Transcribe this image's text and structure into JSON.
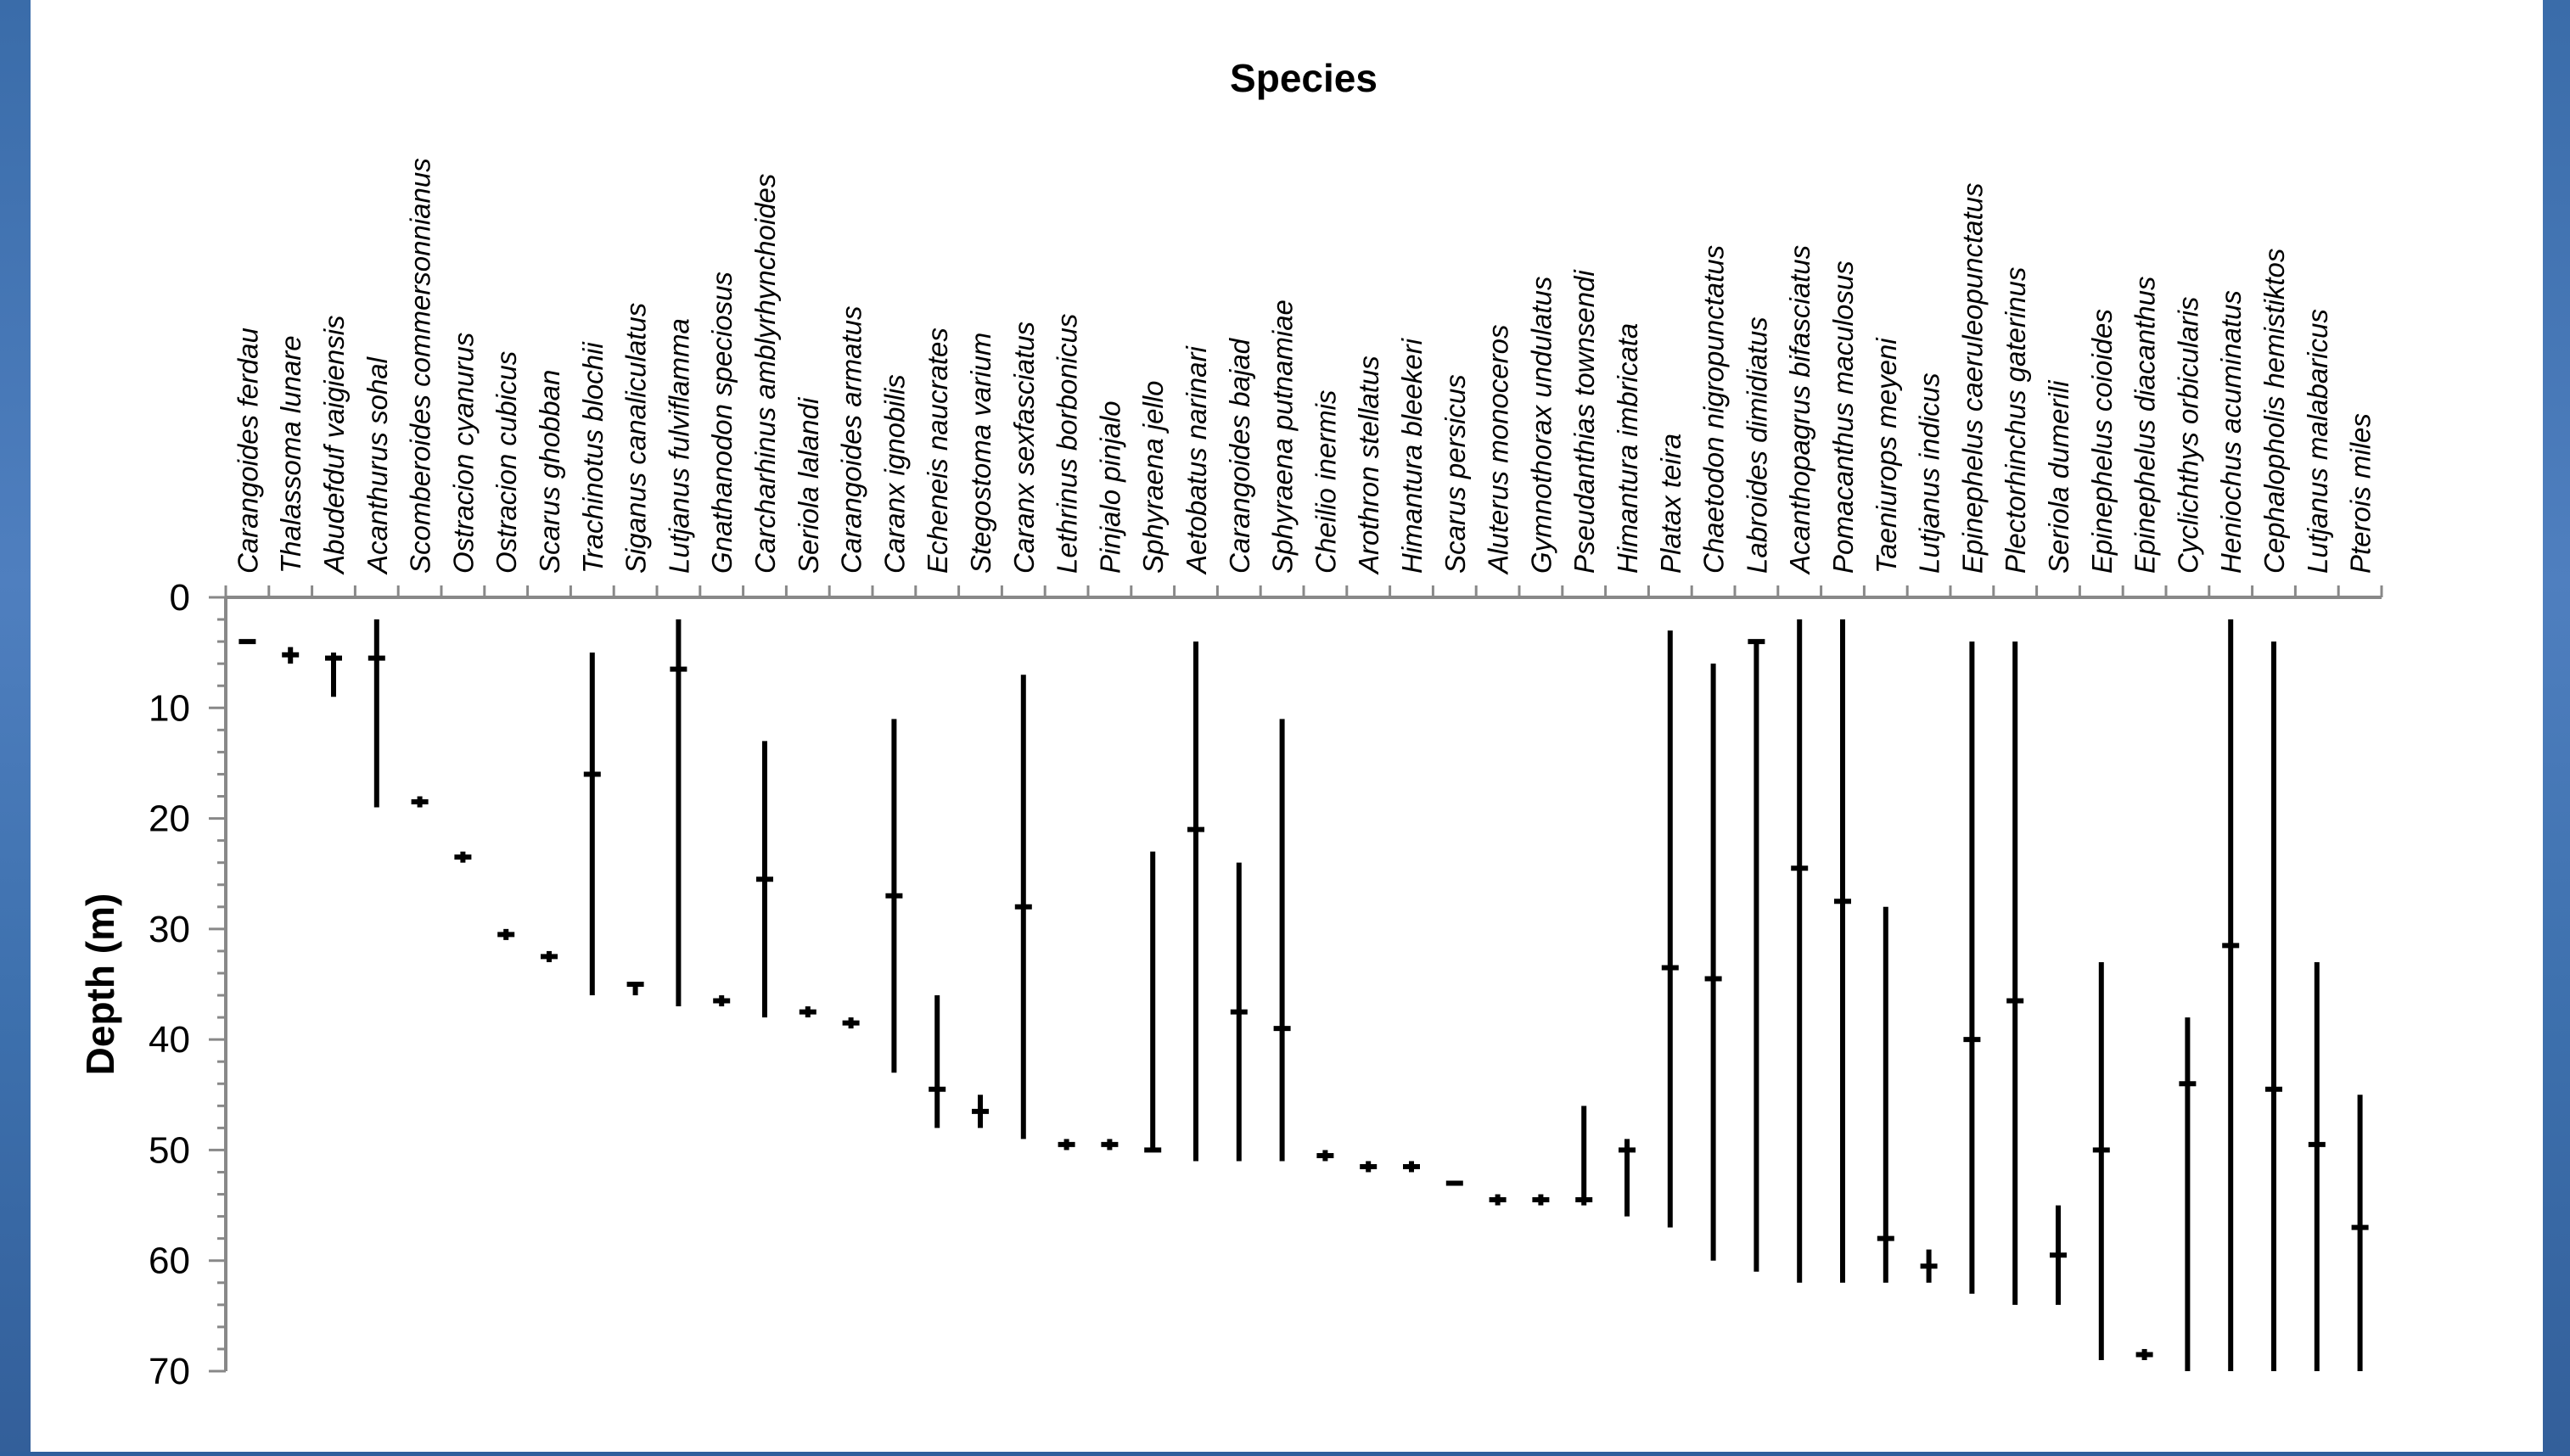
{
  "chart_data": {
    "type": "range",
    "title": "Species",
    "xlabel": "",
    "ylabel": "Depth (m)",
    "y_inverted": true,
    "ylim": [
      0,
      70
    ],
    "yticks": [
      0,
      10,
      20,
      30,
      40,
      50,
      60,
      70
    ],
    "grid": false,
    "legend": "none",
    "series": [
      {
        "species": "Carangoides ferdau",
        "min": 4,
        "max": 4,
        "mean": 4
      },
      {
        "species": "Thalassoma lunare",
        "min": 4.5,
        "max": 6,
        "mean": 5.2
      },
      {
        "species": "Abudefduf vaigiensis",
        "min": 5,
        "max": 9,
        "mean": 5.5
      },
      {
        "species": "Acanthurus sohal",
        "min": 2,
        "max": 19,
        "mean": 5.5
      },
      {
        "species": "Scomberoides commersonnianus",
        "min": 18,
        "max": 19,
        "mean": 18.5
      },
      {
        "species": "Ostracion cyanurus",
        "min": 23,
        "max": 24,
        "mean": 23.5
      },
      {
        "species": "Ostracion cubicus",
        "min": 30,
        "max": 31,
        "mean": 30.5
      },
      {
        "species": "Scarus ghobban",
        "min": 32,
        "max": 33,
        "mean": 32.5
      },
      {
        "species": "Trachinotus blochii",
        "min": 5,
        "max": 36,
        "mean": 16
      },
      {
        "species": "Siganus canaliculatus",
        "min": 35,
        "max": 36,
        "mean": 35
      },
      {
        "species": "Lutjanus fulviflamma",
        "min": 2,
        "max": 37,
        "mean": 6.5
      },
      {
        "species": "Gnathanodon speciosus",
        "min": 36,
        "max": 37,
        "mean": 36.5
      },
      {
        "species": "Carcharhinus amblyrhynchoides",
        "min": 13,
        "max": 38,
        "mean": 25.5
      },
      {
        "species": "Seriola lalandi",
        "min": 37,
        "max": 38,
        "mean": 37.5
      },
      {
        "species": "Carangoides armatus",
        "min": 38,
        "max": 39,
        "mean": 38.5
      },
      {
        "species": "Caranx ignobilis",
        "min": 11,
        "max": 43,
        "mean": 27
      },
      {
        "species": "Echeneis naucrates",
        "min": 36,
        "max": 48,
        "mean": 44.5
      },
      {
        "species": "Stegostoma varium",
        "min": 45,
        "max": 48,
        "mean": 46.5
      },
      {
        "species": "Caranx sexfasciatus",
        "min": 7,
        "max": 49,
        "mean": 28
      },
      {
        "species": "Lethrinus borbonicus",
        "min": 49,
        "max": 50,
        "mean": 49.5
      },
      {
        "species": "Pinjalo pinjalo",
        "min": 49,
        "max": 50,
        "mean": 49.5
      },
      {
        "species": "Sphyraena jello",
        "min": 23,
        "max": 50,
        "mean": 50
      },
      {
        "species": "Aetobatus narinari",
        "min": 4,
        "max": 51,
        "mean": 21
      },
      {
        "species": "Carangoides bajad",
        "min": 24,
        "max": 51,
        "mean": 37.5
      },
      {
        "species": "Sphyraena putnamiae",
        "min": 11,
        "max": 51,
        "mean": 39
      },
      {
        "species": "Cheilio inermis",
        "min": 50,
        "max": 51,
        "mean": 50.5
      },
      {
        "species": "Arothron stellatus",
        "min": 51,
        "max": 52,
        "mean": 51.5
      },
      {
        "species": "Himantura bleekeri",
        "min": 51,
        "max": 52,
        "mean": 51.5
      },
      {
        "species": "Scarus persicus",
        "min": 53,
        "max": 53,
        "mean": 53
      },
      {
        "species": "Aluterus monoceros",
        "min": 54,
        "max": 55,
        "mean": 54.5
      },
      {
        "species": "Gymnothorax undulatus",
        "min": 54,
        "max": 55,
        "mean": 54.5
      },
      {
        "species": "Pseudanthias townsendi",
        "min": 46,
        "max": 55,
        "mean": 54.5
      },
      {
        "species": "Himantura imbricata",
        "min": 49,
        "max": 56,
        "mean": 50
      },
      {
        "species": "Platax teira",
        "min": 3,
        "max": 57,
        "mean": 33.5
      },
      {
        "species": "Chaetodon nigropunctatus",
        "min": 6,
        "max": 60,
        "mean": 34.5
      },
      {
        "species": "Labroides dimidiatus",
        "min": 4,
        "max": 61,
        "mean": 4
      },
      {
        "species": "Acanthopagrus bifasciatus",
        "min": 2,
        "max": 62,
        "mean": 24.5
      },
      {
        "species": "Pomacanthus maculosus",
        "min": 2,
        "max": 62,
        "mean": 27.5
      },
      {
        "species": "Taeniurops meyeni",
        "min": 28,
        "max": 62,
        "mean": 58
      },
      {
        "species": "Lutjanus indicus",
        "min": 59,
        "max": 62,
        "mean": 60.5
      },
      {
        "species": "Epinephelus caeruleopunctatus",
        "min": 4,
        "max": 63,
        "mean": 40
      },
      {
        "species": "Plectorhinchus gaterinus",
        "min": 4,
        "max": 64,
        "mean": 36.5
      },
      {
        "species": "Seriola dumerili",
        "min": 55,
        "max": 64,
        "mean": 59.5
      },
      {
        "species": "Epinephelus coioides",
        "min": 33,
        "max": 69,
        "mean": 50
      },
      {
        "species": "Epinephelus diacanthus",
        "min": 68,
        "max": 69,
        "mean": 68.5
      },
      {
        "species": "Cyclichthys orbicularis",
        "min": 38,
        "max": 70,
        "mean": 44
      },
      {
        "species": "Heniochus acuminatus",
        "min": 2,
        "max": 70,
        "mean": 31.5
      },
      {
        "species": "Cephalopholis hemistiktos",
        "min": 4,
        "max": 70,
        "mean": 44.5
      },
      {
        "species": "Lutjanus malabaricus",
        "min": 33,
        "max": 70,
        "mean": 49.5
      },
      {
        "species": "Pterois miles",
        "min": 45,
        "max": 70,
        "mean": 57
      }
    ]
  }
}
